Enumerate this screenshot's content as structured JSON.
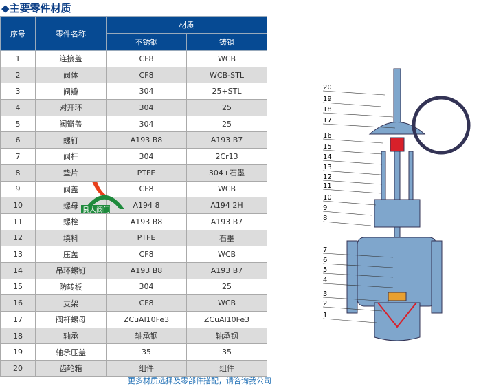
{
  "title": "主要零件材质",
  "headers": {
    "no": "序号",
    "name": "零件名称",
    "material": "材质",
    "stainless": "不锈钢",
    "cast": "铸钢"
  },
  "rows": [
    [
      "1",
      "连接盖",
      "CF8",
      "WCB"
    ],
    [
      "2",
      "阀体",
      "CF8",
      "WCB-STL"
    ],
    [
      "3",
      "阀瓣",
      "304",
      "25+STL"
    ],
    [
      "4",
      "对开环",
      "304",
      "25"
    ],
    [
      "5",
      "阀瓣盖",
      "304",
      "25"
    ],
    [
      "6",
      "螺钉",
      "A193 B8",
      "A193 B7"
    ],
    [
      "7",
      "阀杆",
      "304",
      "2Cr13"
    ],
    [
      "8",
      "垫片",
      "PTFE",
      "304+石墨"
    ],
    [
      "9",
      "阀盖",
      "CF8",
      "WCB"
    ],
    [
      "10",
      "螺母",
      "A194 8",
      "A194 2H"
    ],
    [
      "11",
      "螺栓",
      "A193 B8",
      "A193 B7"
    ],
    [
      "12",
      "填料",
      "PTFE",
      "石墨"
    ],
    [
      "13",
      "压盖",
      "CF8",
      "WCB"
    ],
    [
      "14",
      "吊环螺钉",
      "A193 B8",
      "A193 B7"
    ],
    [
      "15",
      "防转板",
      "304",
      "25"
    ],
    [
      "16",
      "支架",
      "CF8",
      "WCB"
    ],
    [
      "17",
      "阀杆螺母",
      "ZCuAl10Fe3",
      "ZCuAl10Fe3"
    ],
    [
      "18",
      "轴承",
      "轴承钢",
      "轴承钢"
    ],
    [
      "19",
      "轴承压盖",
      "35",
      "35"
    ],
    [
      "20",
      "齿轮箱",
      "组件",
      "组件"
    ]
  ],
  "footer": "更多材质选择及零部件搭配，请咨询我公司",
  "logo_text": "良大阀门",
  "diagram_labels": [
    "20",
    "19",
    "18",
    "17",
    "16",
    "15",
    "14",
    "13",
    "12",
    "11",
    "10",
    "9",
    "8",
    "7",
    "6",
    "5",
    "4",
    "3",
    "2",
    "1"
  ],
  "colors": {
    "header": "#064a93",
    "valve": "#7fa6cc",
    "accent": "#d8202a"
  }
}
